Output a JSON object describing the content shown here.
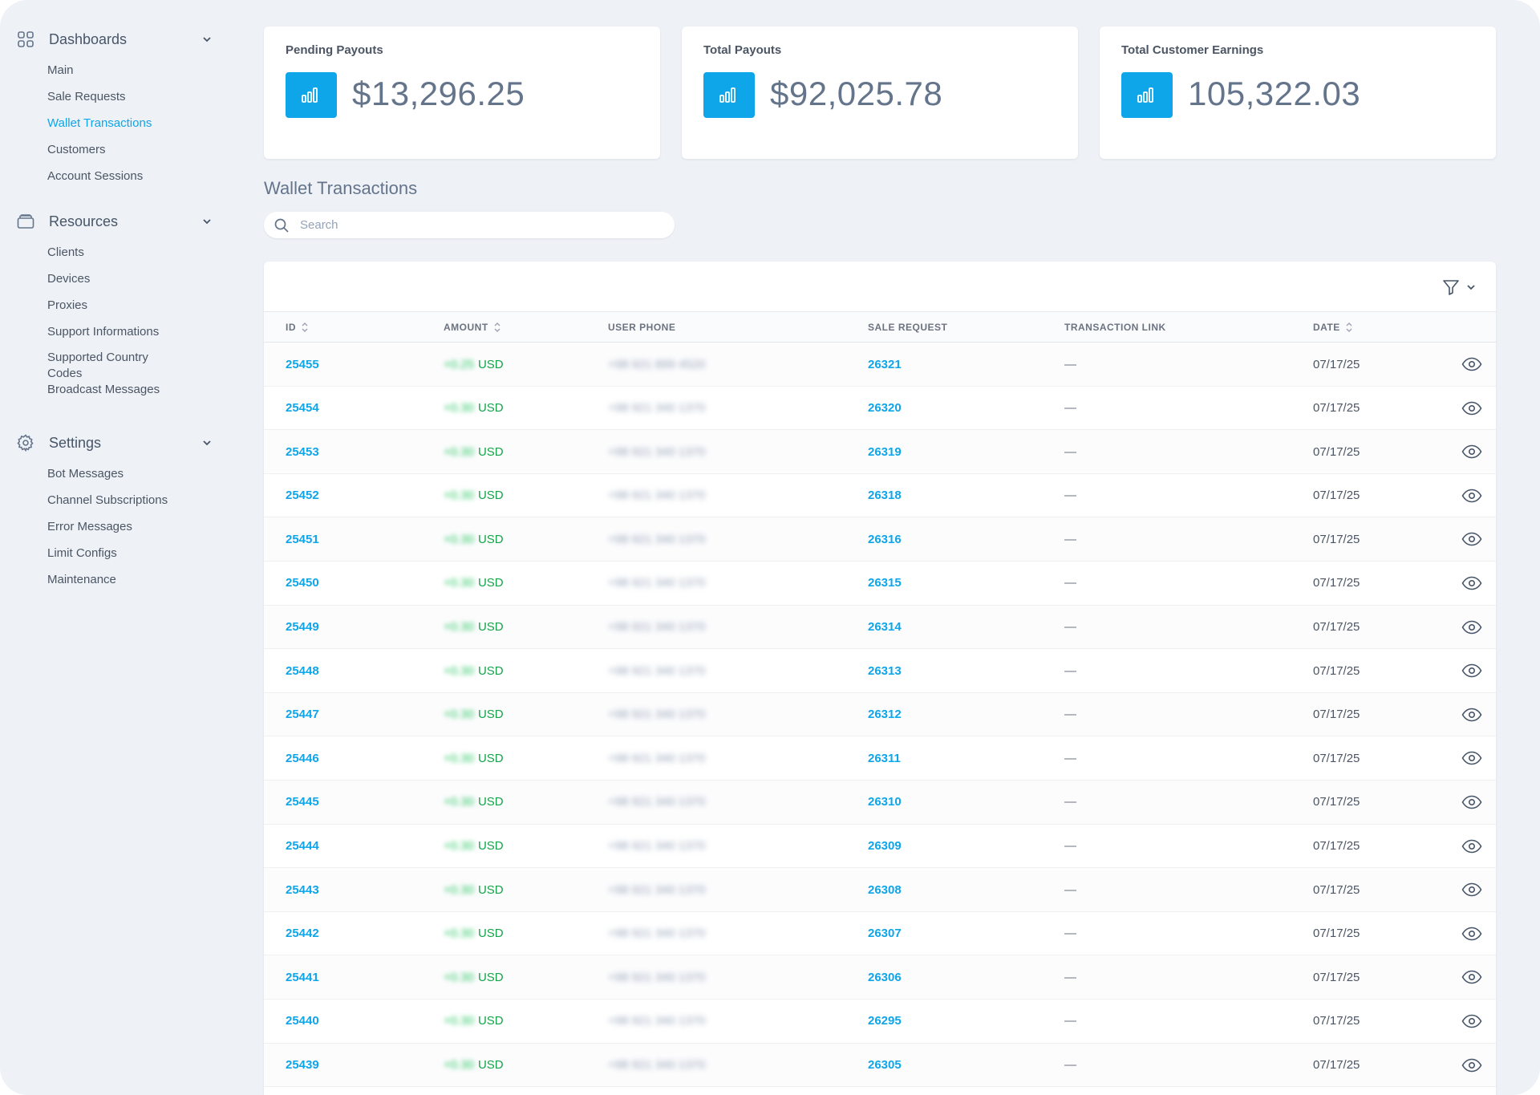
{
  "sidebar": {
    "groups": [
      {
        "title": "Dashboards",
        "icon": "dashboard-grid-icon",
        "items": [
          {
            "label": "Main"
          },
          {
            "label": "Sale Requests"
          },
          {
            "label": "Wallet Transactions",
            "active": true
          },
          {
            "label": "Customers"
          },
          {
            "label": "Account Sessions"
          }
        ]
      },
      {
        "title": "Resources",
        "icon": "archive-box-icon",
        "items": [
          {
            "label": "Clients"
          },
          {
            "label": "Devices"
          },
          {
            "label": "Proxies"
          },
          {
            "label": "Support Informations"
          },
          {
            "label": "Supported Country Codes"
          },
          {
            "label": "Broadcast Messages"
          }
        ]
      },
      {
        "title": "Settings",
        "icon": "gear-icon",
        "items": [
          {
            "label": "Bot Messages"
          },
          {
            "label": "Channel Subscriptions"
          },
          {
            "label": "Error Messages"
          },
          {
            "label": "Limit Configs"
          },
          {
            "label": "Maintenance"
          }
        ]
      }
    ]
  },
  "stats": [
    {
      "title": "Pending Payouts",
      "value": "$13,296.25",
      "icon": "bar-chart-icon"
    },
    {
      "title": "Total Payouts",
      "value": "$92,025.78",
      "icon": "bar-chart-icon"
    },
    {
      "title": "Total Customer Earnings",
      "value": "105,322.03",
      "icon": "bar-chart-icon"
    }
  ],
  "section_title": "Wallet Transactions",
  "search": {
    "placeholder": "Search"
  },
  "table": {
    "columns": {
      "id": "ID",
      "amount": "AMOUNT",
      "user_phone": "USER PHONE",
      "sale_request": "SALE REQUEST",
      "transaction_link": "TRANSACTION LINK",
      "date": "DATE"
    },
    "rows": [
      {
        "id": "25455",
        "amount": "+0.25",
        "currency": "USD",
        "phone": "+98 921 899 4520",
        "sale_request": "26321",
        "link": "—",
        "date": "07/17/25"
      },
      {
        "id": "25454",
        "amount": "+0.30",
        "currency": "USD",
        "phone": "+98 921 340 1370",
        "sale_request": "26320",
        "link": "—",
        "date": "07/17/25"
      },
      {
        "id": "25453",
        "amount": "+0.30",
        "currency": "USD",
        "phone": "+98 921 340 1370",
        "sale_request": "26319",
        "link": "—",
        "date": "07/17/25"
      },
      {
        "id": "25452",
        "amount": "+0.30",
        "currency": "USD",
        "phone": "+98 921 340 1370",
        "sale_request": "26318",
        "link": "—",
        "date": "07/17/25"
      },
      {
        "id": "25451",
        "amount": "+0.30",
        "currency": "USD",
        "phone": "+98 921 340 1370",
        "sale_request": "26316",
        "link": "—",
        "date": "07/17/25"
      },
      {
        "id": "25450",
        "amount": "+0.30",
        "currency": "USD",
        "phone": "+98 921 340 1370",
        "sale_request": "26315",
        "link": "—",
        "date": "07/17/25"
      },
      {
        "id": "25449",
        "amount": "+0.30",
        "currency": "USD",
        "phone": "+98 921 340 1370",
        "sale_request": "26314",
        "link": "—",
        "date": "07/17/25"
      },
      {
        "id": "25448",
        "amount": "+0.30",
        "currency": "USD",
        "phone": "+98 921 340 1370",
        "sale_request": "26313",
        "link": "—",
        "date": "07/17/25"
      },
      {
        "id": "25447",
        "amount": "+0.30",
        "currency": "USD",
        "phone": "+98 921 340 1370",
        "sale_request": "26312",
        "link": "—",
        "date": "07/17/25"
      },
      {
        "id": "25446",
        "amount": "+0.30",
        "currency": "USD",
        "phone": "+98 921 340 1370",
        "sale_request": "26311",
        "link": "—",
        "date": "07/17/25"
      },
      {
        "id": "25445",
        "amount": "+0.30",
        "currency": "USD",
        "phone": "+98 921 340 1370",
        "sale_request": "26310",
        "link": "—",
        "date": "07/17/25"
      },
      {
        "id": "25444",
        "amount": "+0.30",
        "currency": "USD",
        "phone": "+98 921 340 1370",
        "sale_request": "26309",
        "link": "—",
        "date": "07/17/25"
      },
      {
        "id": "25443",
        "amount": "+0.30",
        "currency": "USD",
        "phone": "+98 921 340 1370",
        "sale_request": "26308",
        "link": "—",
        "date": "07/17/25"
      },
      {
        "id": "25442",
        "amount": "+0.30",
        "currency": "USD",
        "phone": "+98 921 340 1370",
        "sale_request": "26307",
        "link": "—",
        "date": "07/17/25"
      },
      {
        "id": "25441",
        "amount": "+0.30",
        "currency": "USD",
        "phone": "+98 921 340 1370",
        "sale_request": "26306",
        "link": "—",
        "date": "07/17/25"
      },
      {
        "id": "25440",
        "amount": "+0.30",
        "currency": "USD",
        "phone": "+98 921 340 1370",
        "sale_request": "26295",
        "link": "—",
        "date": "07/17/25"
      },
      {
        "id": "25439",
        "amount": "+0.30",
        "currency": "USD",
        "phone": "+98 921 340 1370",
        "sale_request": "26305",
        "link": "—",
        "date": "07/17/25"
      }
    ]
  },
  "colors": {
    "accent": "#0ea5e9",
    "positive": "#16a34a",
    "background": "#eef2f7"
  }
}
